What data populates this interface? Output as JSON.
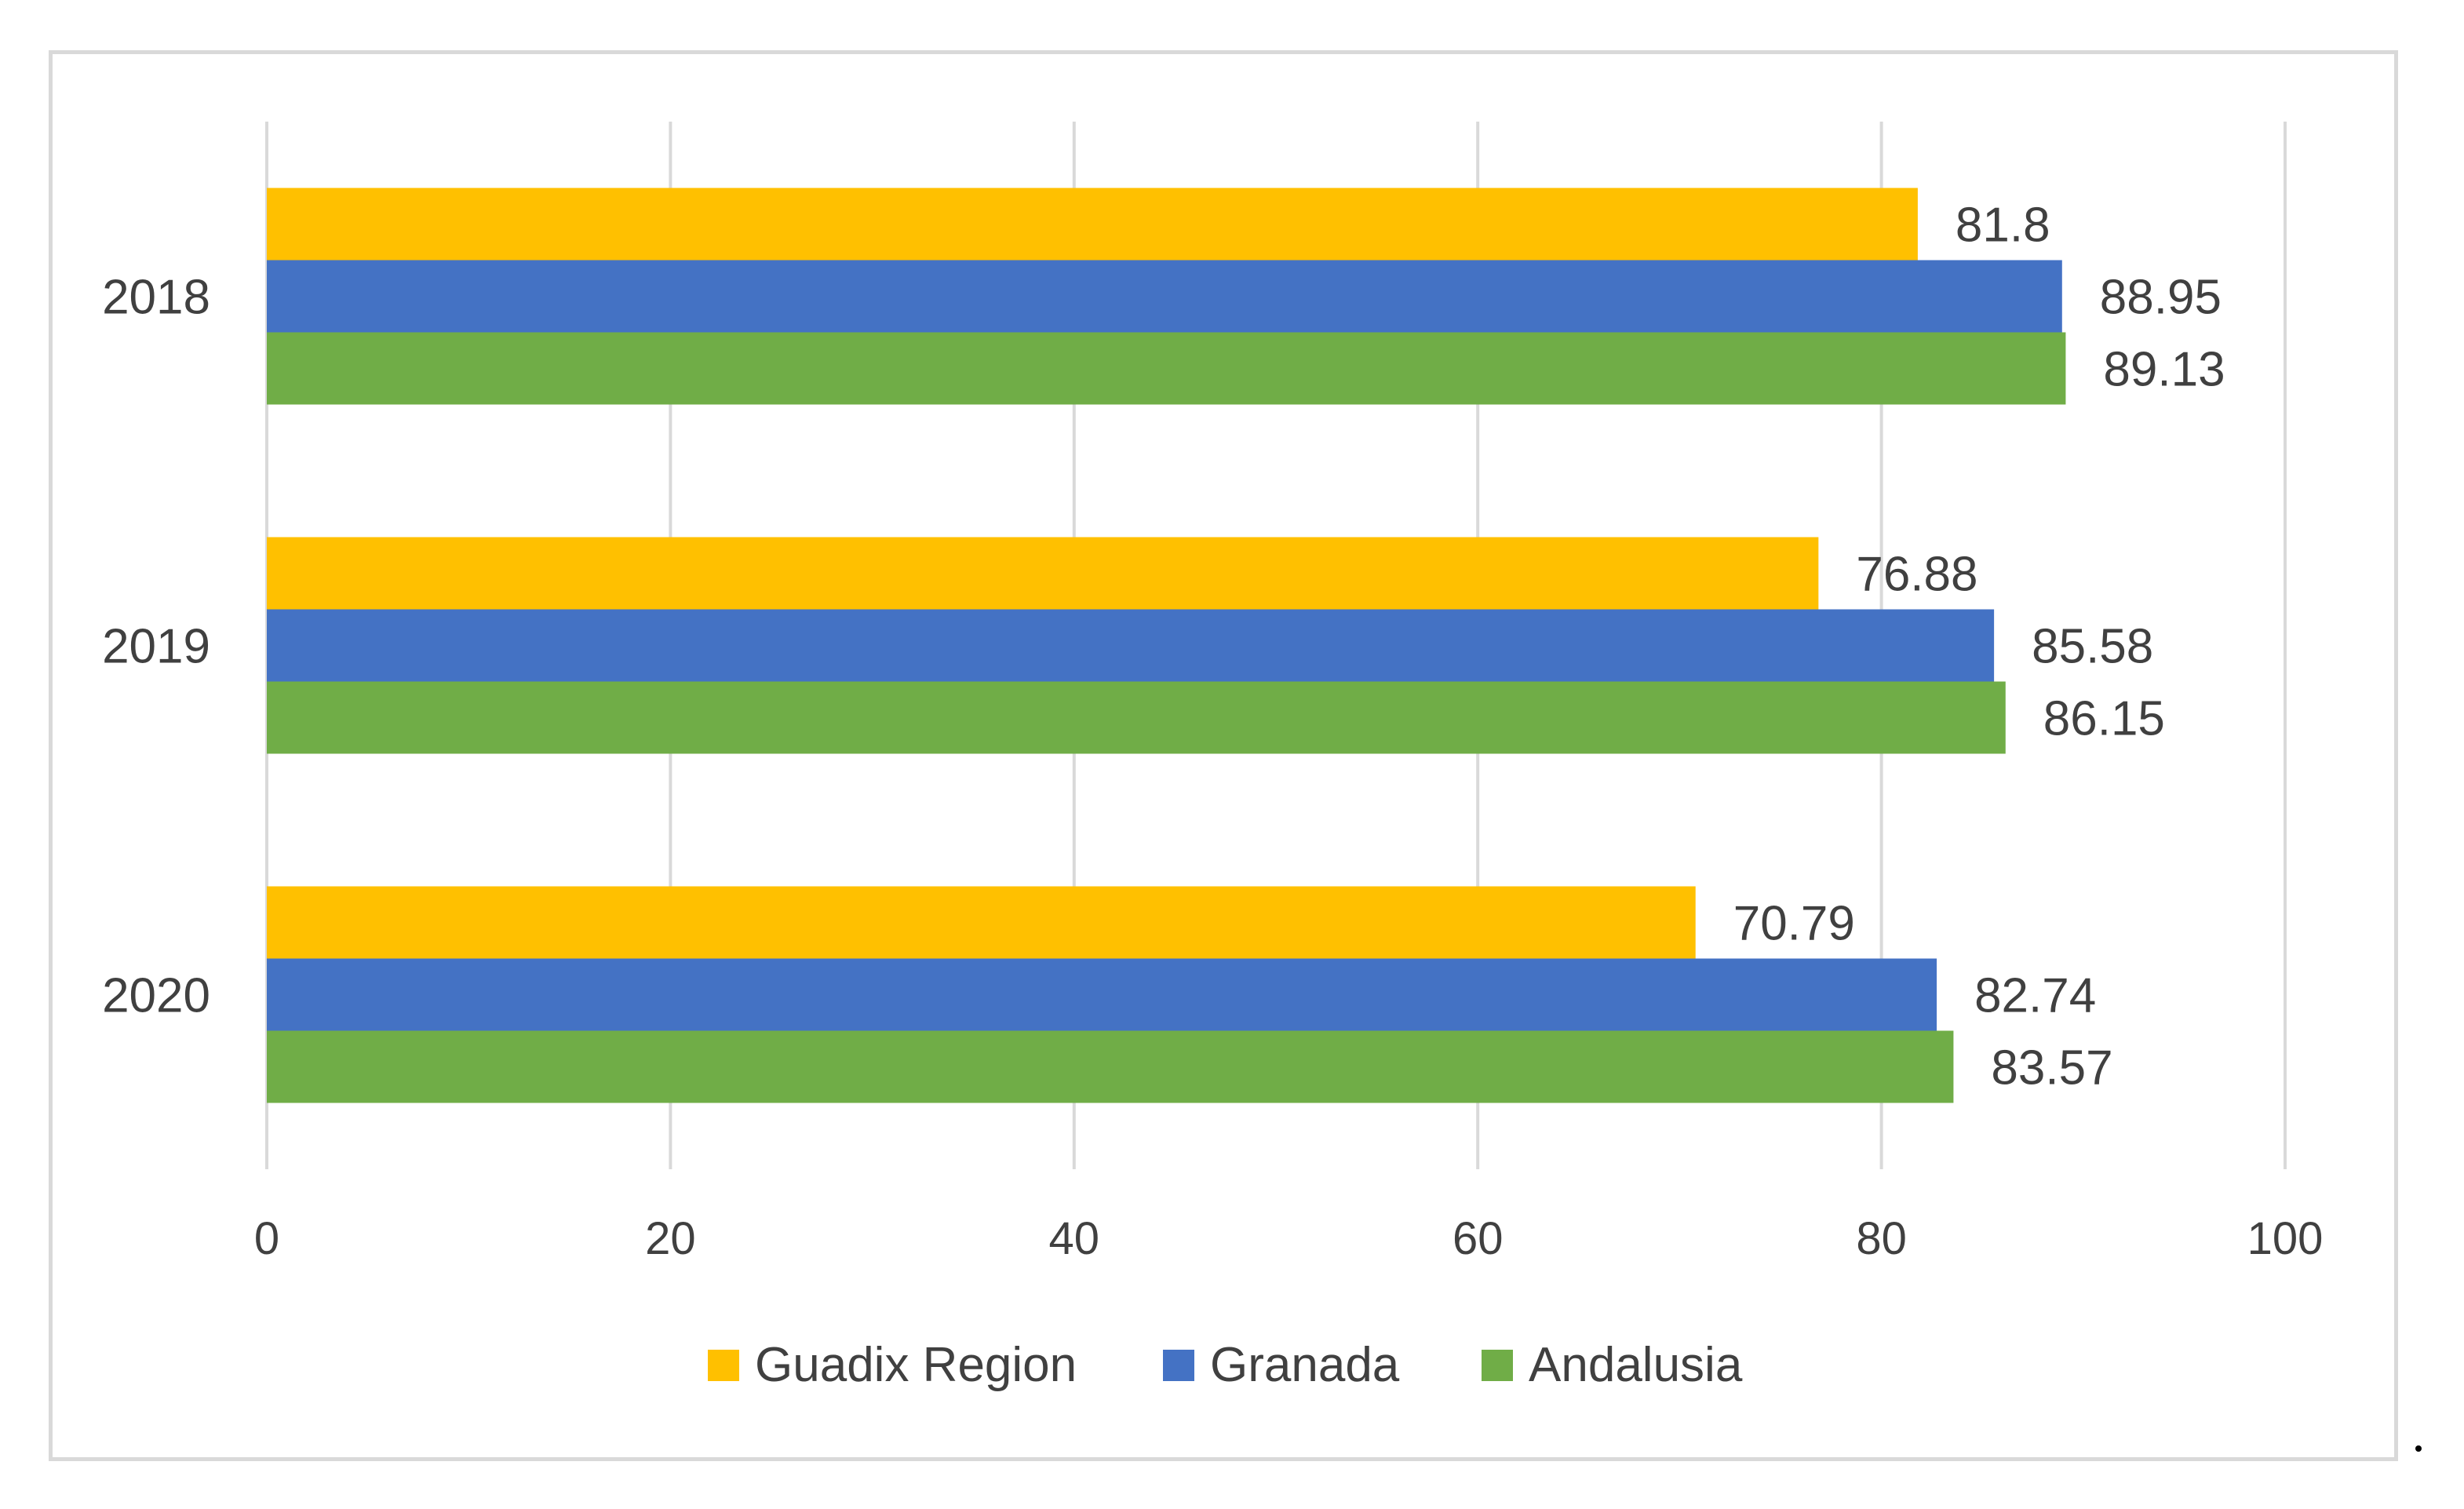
{
  "chart_data": {
    "type": "bar",
    "orientation": "horizontal",
    "categories": [
      "2018",
      "2019",
      "2020"
    ],
    "series": [
      {
        "name": "Guadix Region",
        "color": "#FFC000",
        "values": [
          81.8,
          76.88,
          70.79
        ],
        "labels": [
          "81.8",
          "76.88",
          "70.79"
        ]
      },
      {
        "name": "Granada",
        "color": "#4472C4",
        "values": [
          88.95,
          85.58,
          82.74
        ],
        "labels": [
          "88.95",
          "85.58",
          "82.74"
        ]
      },
      {
        "name": "Andalusia",
        "color": "#70AD47",
        "values": [
          89.13,
          86.15,
          83.57
        ],
        "labels": [
          "89.13",
          "86.15",
          "83.57"
        ]
      }
    ],
    "xlim": [
      0,
      100
    ],
    "xticks": [
      0,
      20,
      40,
      60,
      80,
      100
    ],
    "grid": true,
    "legend_position": "bottom",
    "title": "",
    "xlabel": "",
    "ylabel": ""
  }
}
